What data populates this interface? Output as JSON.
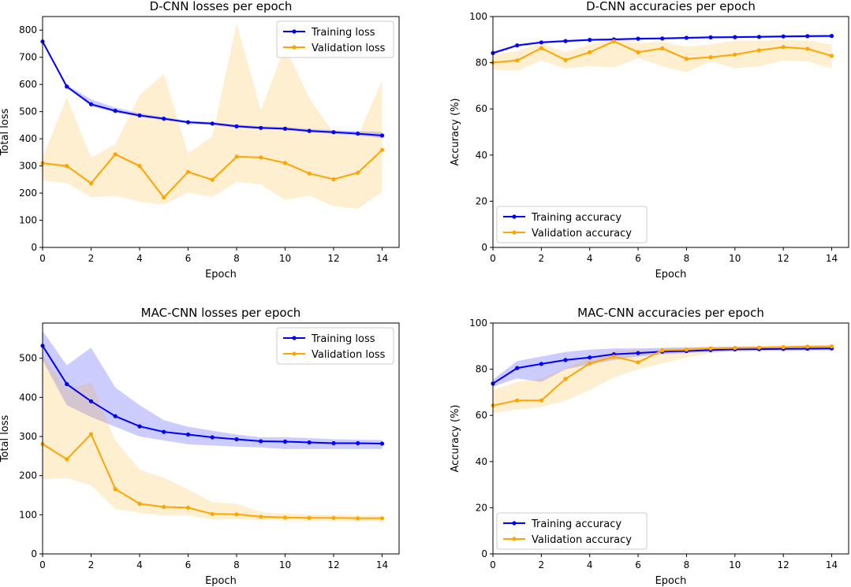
{
  "chart_data": [
    {
      "type": "line",
      "title": "D-CNN losses per epoch",
      "xlabel": "Epoch",
      "ylabel": "Total loss",
      "xlim": [
        0,
        14.7
      ],
      "ylim": [
        0,
        850
      ],
      "xticks": [
        0,
        2,
        4,
        6,
        8,
        10,
        12,
        14
      ],
      "yticks": [
        0,
        100,
        200,
        300,
        400,
        500,
        600,
        700,
        800
      ],
      "legend_loc": "top-right",
      "x": [
        0,
        1,
        2,
        3,
        4,
        5,
        6,
        7,
        8,
        9,
        10,
        11,
        12,
        13,
        14
      ],
      "series": [
        {
          "name": "Training loss",
          "color": "#0000ff",
          "values": [
            758,
            592,
            527,
            503,
            486,
            474,
            461,
            456,
            446,
            440,
            437,
            429,
            424,
            419,
            412
          ],
          "band_low": [
            752,
            588,
            520,
            497,
            481,
            469,
            457,
            452,
            440,
            436,
            432,
            423,
            418,
            412,
            403
          ],
          "band_high": [
            764,
            598,
            545,
            515,
            494,
            480,
            466,
            462,
            452,
            446,
            444,
            436,
            432,
            428,
            425
          ]
        },
        {
          "name": "Validation loss",
          "color": "#ffa500",
          "values": [
            310,
            300,
            236,
            343,
            300,
            184,
            278,
            249,
            334,
            331,
            311,
            272,
            251,
            275,
            359
          ],
          "band_low": [
            246,
            237,
            185,
            190,
            168,
            158,
            202,
            186,
            241,
            232,
            175,
            190,
            152,
            142,
            205
          ],
          "band_high": [
            330,
            552,
            330,
            380,
            560,
            640,
            345,
            410,
            825,
            505,
            740,
            550,
            420,
            410,
            615
          ]
        }
      ]
    },
    {
      "type": "line",
      "title": "D-CNN accuracies per epoch",
      "xlabel": "Epoch",
      "ylabel": "Accuracy (%)",
      "xlim": [
        0,
        14.7
      ],
      "ylim": [
        0,
        100
      ],
      "xticks": [
        0,
        2,
        4,
        6,
        8,
        10,
        12,
        14
      ],
      "yticks": [
        0,
        20,
        40,
        60,
        80,
        100
      ],
      "legend_loc": "bottom-left",
      "x": [
        0,
        1,
        2,
        3,
        4,
        5,
        6,
        7,
        8,
        9,
        10,
        11,
        12,
        13,
        14
      ],
      "series": [
        {
          "name": "Training accuracy",
          "color": "#0000ff",
          "values": [
            84.2,
            87.5,
            88.8,
            89.4,
            89.9,
            90.1,
            90.4,
            90.5,
            90.8,
            91.0,
            91.1,
            91.2,
            91.4,
            91.5,
            91.6
          ],
          "band_low": [
            83.5,
            87.0,
            88.3,
            88.9,
            89.4,
            89.6,
            89.9,
            90.0,
            90.3,
            90.5,
            90.6,
            90.7,
            90.9,
            91.0,
            91.1
          ],
          "band_high": [
            84.8,
            88.0,
            89.3,
            89.9,
            90.4,
            90.6,
            90.9,
            91.0,
            91.3,
            91.5,
            91.6,
            91.7,
            91.9,
            92.0,
            92.1
          ]
        },
        {
          "name": "Validation accuracy",
          "color": "#ffa500",
          "values": [
            80.1,
            81.0,
            86.3,
            81.2,
            84.5,
            89.3,
            84.5,
            86.2,
            81.7,
            82.4,
            83.5,
            85.4,
            86.8,
            86.0,
            83.0
          ],
          "band_low": [
            77.0,
            76.5,
            81.0,
            77.5,
            78.5,
            78.0,
            82.0,
            78.5,
            75.8,
            80.5,
            77.5,
            78.5,
            81.0,
            80.5,
            77.5
          ],
          "band_high": [
            83.5,
            85.0,
            88.5,
            84.5,
            88.0,
            90.5,
            88.5,
            89.0,
            87.0,
            88.0,
            89.5,
            89.5,
            90.0,
            89.5,
            88.0
          ]
        }
      ]
    },
    {
      "type": "line",
      "title": "MAC-CNN losses per epoch",
      "xlabel": "Epoch",
      "ylabel": "Total loss",
      "xlim": [
        0,
        14.7
      ],
      "ylim": [
        0,
        590
      ],
      "xticks": [
        0,
        2,
        4,
        6,
        8,
        10,
        12,
        14
      ],
      "yticks": [
        0,
        100,
        200,
        300,
        400,
        500
      ],
      "legend_loc": "top-right",
      "x": [
        0,
        1,
        2,
        3,
        4,
        5,
        6,
        7,
        8,
        9,
        10,
        11,
        12,
        13,
        14
      ],
      "series": [
        {
          "name": "Training loss",
          "color": "#0000ff",
          "values": [
            532,
            434,
            390,
            352,
            326,
            312,
            305,
            298,
            293,
            288,
            287,
            285,
            283,
            283,
            282
          ],
          "band_low": [
            495,
            380,
            350,
            325,
            300,
            290,
            280,
            277,
            274,
            272,
            268,
            268,
            268,
            268,
            268
          ],
          "band_high": [
            570,
            482,
            527,
            425,
            380,
            342,
            325,
            315,
            305,
            298,
            298,
            296,
            293,
            292,
            291
          ]
        },
        {
          "name": "Validation loss",
          "color": "#ffa500",
          "values": [
            281,
            242,
            306,
            166,
            128,
            120,
            118,
            102,
            101,
            95,
            93,
            92,
            92,
            91,
            91
          ],
          "band_low": [
            190,
            195,
            175,
            115,
            105,
            98,
            98,
            88,
            89,
            86,
            85,
            85,
            85,
            84,
            84
          ],
          "band_high": [
            510,
            420,
            438,
            290,
            215,
            195,
            165,
            132,
            128,
            107,
            103,
            100,
            100,
            98,
            98
          ]
        }
      ]
    },
    {
      "type": "line",
      "title": "MAC-CNN accuracies per epoch",
      "xlabel": "Epoch",
      "ylabel": "Accuracy (%)",
      "xlim": [
        0,
        14.7
      ],
      "ylim": [
        0,
        100
      ],
      "xticks": [
        0,
        2,
        4,
        6,
        8,
        10,
        12,
        14
      ],
      "yticks": [
        0,
        20,
        40,
        60,
        80,
        100
      ],
      "legend_loc": "bottom-left",
      "x": [
        0,
        1,
        2,
        3,
        4,
        5,
        6,
        7,
        8,
        9,
        10,
        11,
        12,
        13,
        14
      ],
      "series": [
        {
          "name": "Training accuracy",
          "color": "#0000ff",
          "values": [
            73.8,
            80.5,
            82.3,
            84.0,
            85.1,
            86.5,
            87.0,
            87.6,
            87.9,
            88.3,
            88.6,
            88.7,
            88.8,
            88.9,
            89.0
          ],
          "band_low": [
            72.5,
            76.0,
            74.5,
            80.0,
            82.0,
            84.0,
            85.5,
            86.5,
            87.0,
            87.5,
            87.8,
            88.0,
            88.0,
            88.1,
            88.2
          ],
          "band_high": [
            75.5,
            83.5,
            85.5,
            87.5,
            88.5,
            89.0,
            89.0,
            89.3,
            89.5,
            89.6,
            89.7,
            89.8,
            89.9,
            90.0,
            90.0
          ]
        },
        {
          "name": "Validation accuracy",
          "color": "#ffa500",
          "values": [
            64.3,
            66.5,
            66.5,
            75.8,
            82.5,
            85.5,
            83.0,
            88.2,
            88.5,
            89.0,
            89.2,
            89.4,
            89.6,
            89.8,
            89.9
          ],
          "band_low": [
            61.0,
            62.5,
            63.5,
            66.5,
            71.0,
            76.5,
            80.0,
            82.5,
            85.0,
            87.0,
            88.0,
            88.5,
            89.0,
            89.0,
            89.2
          ],
          "band_high": [
            71.0,
            74.5,
            76.0,
            80.5,
            85.0,
            88.0,
            88.5,
            89.0,
            89.5,
            90.0,
            90.0,
            90.2,
            90.3,
            90.4,
            90.5
          ]
        }
      ]
    }
  ]
}
